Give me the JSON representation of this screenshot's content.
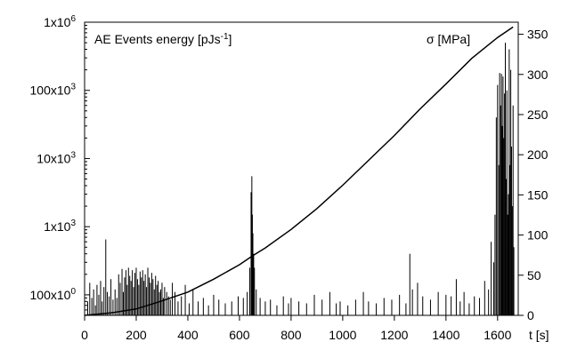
{
  "chart_data": {
    "type": "line",
    "left_axis": {
      "scale": "log",
      "ylim": [
        50,
        1000000
      ],
      "tick_values": [
        100,
        1000,
        10000,
        100000,
        1000000
      ],
      "tick_labels": [
        {
          "base": "100x10",
          "exp": "0"
        },
        {
          "base": "1x10",
          "exp": "3"
        },
        {
          "base": "10x10",
          "exp": "3"
        },
        {
          "base": "100x10",
          "exp": "3"
        },
        {
          "base": "1x10",
          "exp": "6"
        }
      ]
    },
    "right_axis": {
      "scale": "linear",
      "ylim": [
        0,
        365
      ],
      "ticks": [
        "0",
        "50",
        "100",
        "150",
        "200",
        "250",
        "300",
        "350"
      ],
      "tick_values": [
        0,
        50,
        100,
        150,
        200,
        250,
        300,
        350
      ]
    },
    "x_axis": {
      "xlim": [
        0,
        1680
      ],
      "ticks": [
        "0",
        "200",
        "400",
        "600",
        "800",
        "1000",
        "1200",
        "1400",
        "1600"
      ],
      "tick_values": [
        0,
        200,
        400,
        600,
        800,
        1000,
        1200,
        1400,
        1600
      ],
      "label": "t [s]"
    },
    "labels": {
      "left": {
        "pre": "AE Events energy [pJs",
        "sup": "-1",
        "post": "]"
      },
      "right": "σ [MPa]"
    },
    "series": [
      {
        "axis": "right",
        "style": "line",
        "x": [
          0,
          100,
          200,
          300,
          400,
          500,
          600,
          650,
          700,
          800,
          900,
          1000,
          1100,
          1200,
          1300,
          1400,
          1500,
          1600,
          1660
        ],
        "y": [
          0,
          3,
          8,
          18,
          29,
          45,
          63,
          74,
          84,
          107,
          133,
          162,
          193,
          224,
          257,
          288,
          320,
          346,
          359
        ]
      },
      {
        "axis": "left",
        "style": "spikes",
        "x": [
          12,
          20,
          28,
          35,
          42,
          48,
          55,
          62,
          68,
          75,
          82,
          88,
          95,
          102,
          110,
          118,
          125,
          132,
          138,
          145,
          150,
          155,
          160,
          165,
          170,
          175,
          180,
          185,
          190,
          195,
          200,
          205,
          210,
          215,
          220,
          225,
          230,
          235,
          240,
          245,
          250,
          255,
          260,
          265,
          270,
          275,
          280,
          285,
          290,
          295,
          300,
          305,
          310,
          318,
          325,
          332,
          340,
          350,
          362,
          375,
          390,
          405,
          420,
          440,
          460,
          480,
          500,
          520,
          545,
          570,
          595,
          615,
          630,
          640,
          645,
          648,
          650,
          652,
          655,
          658,
          665,
          680,
          700,
          720,
          745,
          770,
          790,
          800,
          830,
          860,
          890,
          920,
          950,
          975,
          990,
          1020,
          1050,
          1080,
          1100,
          1130,
          1160,
          1190,
          1220,
          1245,
          1260,
          1270,
          1290,
          1310,
          1340,
          1370,
          1400,
          1420,
          1440,
          1455,
          1470,
          1490,
          1510,
          1530,
          1550,
          1565,
          1575,
          1585,
          1590,
          1595,
          1600,
          1605,
          1608,
          1612,
          1615,
          1618,
          1621,
          1624,
          1627,
          1630,
          1633,
          1636,
          1639,
          1642,
          1645,
          1648,
          1651,
          1654,
          1657,
          1660,
          1663
        ],
        "y": [
          80,
          150,
          90,
          120,
          70,
          140,
          100,
          160,
          80,
          130,
          650,
          110,
          95,
          170,
          85,
          120,
          90,
          200,
          150,
          240,
          110,
          180,
          230,
          140,
          250,
          190,
          160,
          230,
          130,
          210,
          250,
          170,
          140,
          220,
          180,
          230,
          160,
          200,
          130,
          250,
          180,
          150,
          210,
          170,
          120,
          190,
          140,
          160,
          110,
          120,
          150,
          90,
          130,
          110,
          95,
          85,
          150,
          110,
          80,
          95,
          140,
          75,
          120,
          80,
          90,
          70,
          100,
          85,
          75,
          80,
          95,
          90,
          110,
          250,
          3200,
          5500,
          1500,
          800,
          400,
          250,
          120,
          90,
          80,
          85,
          70,
          95,
          75,
          90,
          80,
          75,
          100,
          85,
          110,
          75,
          80,
          70,
          85,
          110,
          80,
          75,
          90,
          85,
          100,
          75,
          400,
          120,
          150,
          95,
          85,
          110,
          100,
          95,
          170,
          80,
          110,
          75,
          95,
          90,
          160,
          120,
          600,
          300,
          1500,
          40000,
          120000,
          8000,
          180000,
          60000,
          175000,
          30000,
          160000,
          20000,
          90000,
          500000,
          5000,
          100000,
          1500,
          3000,
          400000,
          8000,
          200000,
          15000,
          2000,
          60000,
          500
        ]
      }
    ]
  }
}
